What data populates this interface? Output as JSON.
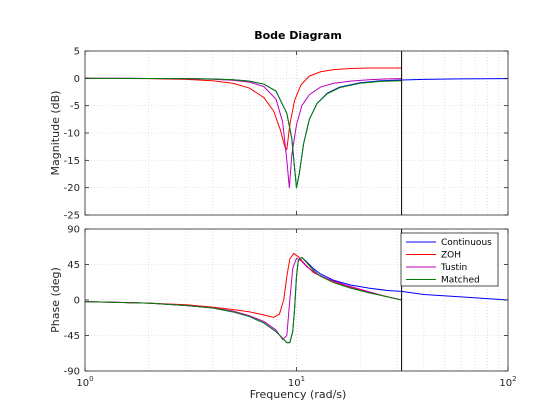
{
  "chart_data": {
    "type": "line",
    "title": "Bode Diagram",
    "xlabel": "Frequency  (rad/s)",
    "xscale": "log",
    "xlim": [
      1,
      100
    ],
    "x_ticks": [
      {
        "value": 1,
        "base": "10",
        "exp": "0"
      },
      {
        "value": 10,
        "base": "10",
        "exp": "1"
      },
      {
        "value": 100,
        "base": "10",
        "exp": "2"
      }
    ],
    "vertical_marker_x": 31.4,
    "grid": true,
    "legend_position": "top-right",
    "panels": [
      {
        "id": "magnitude",
        "ylabel": "Magnitude (dB)",
        "ylim": [
          -25,
          5
        ],
        "y_ticks": [
          5,
          0,
          -5,
          -10,
          -15,
          -20,
          -25
        ],
        "series": [
          {
            "name": "Continuous",
            "color": "#0000ff",
            "x": [
              1,
              2,
              3,
              4,
              5,
              6,
              7,
              8,
              9,
              9.5,
              9.8,
              10,
              10.3,
              10.8,
              11.5,
              12.5,
              14,
              16,
              20,
              25,
              31.4,
              40,
              60,
              100
            ],
            "y": [
              0,
              -0.02,
              -0.06,
              -0.13,
              -0.27,
              -0.52,
              -1.05,
              -2.35,
              -6.4,
              -11,
              -16.5,
              -20,
              -17.5,
              -12,
              -7.5,
              -4.6,
              -2.7,
              -1.6,
              -0.8,
              -0.45,
              -0.3,
              -0.2,
              -0.1,
              -0.05
            ]
          },
          {
            "name": "ZOH",
            "color": "#ff0000",
            "x": [
              1,
              2,
              3,
              4,
              5,
              6,
              7,
              7.8,
              8.4,
              8.8,
              9.0,
              9.3,
              9.8,
              10.5,
              11.5,
              13,
              15,
              18,
              22,
              27,
              31.4
            ],
            "y": [
              0,
              -0.05,
              -0.2,
              -0.45,
              -0.9,
              -1.8,
              -3.5,
              -6,
              -9.5,
              -12.5,
              -13,
              -8.5,
              -4,
              -1.2,
              0.4,
              1.2,
              1.6,
              1.8,
              1.9,
              1.9,
              1.9
            ]
          },
          {
            "name": "Tustin",
            "color": "#bf00bf",
            "x": [
              1,
              2,
              3,
              4,
              5,
              6,
              7,
              8,
              8.6,
              9.0,
              9.25,
              9.5,
              10,
              10.6,
              11.5,
              13,
              15,
              18,
              22,
              27,
              31.4
            ],
            "y": [
              0,
              -0.02,
              -0.07,
              -0.16,
              -0.35,
              -0.7,
              -1.5,
              -3.8,
              -8,
              -15,
              -20,
              -14,
              -8.5,
              -5,
              -3,
              -1.6,
              -0.9,
              -0.5,
              -0.25,
              -0.1,
              -0.05
            ]
          },
          {
            "name": "Matched",
            "color": "#008000",
            "x": [
              1,
              2,
              3,
              4,
              5,
              6,
              7,
              8,
              9,
              9.5,
              9.8,
              10,
              10.3,
              10.8,
              11.5,
              12.5,
              14,
              16,
              20,
              25,
              31.4
            ],
            "y": [
              0,
              -0.02,
              -0.06,
              -0.13,
              -0.27,
              -0.52,
              -1.05,
              -2.35,
              -6.4,
              -11,
              -16.5,
              -20,
              -17.5,
              -12,
              -7.5,
              -4.6,
              -2.8,
              -1.7,
              -0.9,
              -0.55,
              -0.45
            ]
          }
        ]
      },
      {
        "id": "phase",
        "ylabel": "Phase (deg)",
        "ylim": [
          -90,
          90
        ],
        "y_ticks": [
          90,
          45,
          0,
          -45,
          -90
        ],
        "series": [
          {
            "name": "Continuous",
            "color": "#0000ff",
            "x": [
              1,
              2,
              3,
              4,
              5,
              6,
              7,
              8,
              9,
              9.3,
              9.6,
              9.8,
              10,
              10.2,
              10.6,
              11.2,
              12,
              13,
              15,
              18,
              22,
              27,
              31.4,
              40,
              60,
              100
            ],
            "y": [
              -2,
              -4,
              -7,
              -10,
              -15,
              -21,
              -29,
              -40,
              -54,
              -54,
              -40,
              -10,
              30,
              50,
              54,
              48,
              40,
              33,
              25,
              19,
              15,
              12,
              11,
              7,
              4,
              0
            ]
          },
          {
            "name": "ZOH",
            "color": "#ff0000",
            "x": [
              1,
              2,
              3,
              4,
              5,
              6,
              7,
              7.8,
              8.3,
              8.7,
              9.0,
              9.3,
              9.7,
              10.2,
              11,
              12,
              14,
              17,
              21,
              26,
              31.4
            ],
            "y": [
              -2,
              -4,
              -6,
              -9,
              -12,
              -15,
              -19,
              -22,
              -18,
              0,
              30,
              52,
              59,
              55,
              45,
              35,
              26,
              18,
              11,
              5,
              0
            ]
          },
          {
            "name": "Tustin",
            "color": "#bf00bf",
            "x": [
              1,
              2,
              3,
              4,
              5,
              6,
              7,
              8,
              8.6,
              9.0,
              9.3,
              9.6,
              10.0,
              10.5,
              11.2,
              12.5,
              14,
              17,
              21,
              26,
              31.4
            ],
            "y": [
              -2,
              -4,
              -7,
              -10,
              -14,
              -20,
              -27,
              -38,
              -50,
              -45,
              0,
              40,
              53,
              50,
              42,
              33,
              27,
              19,
              12,
              5,
              0
            ]
          },
          {
            "name": "Matched",
            "color": "#008000",
            "x": [
              1,
              2,
              3,
              4,
              5,
              6,
              7,
              8,
              9,
              9.3,
              9.6,
              9.8,
              10,
              10.2,
              10.6,
              11.2,
              12,
              13,
              15,
              18,
              22,
              27,
              31.4
            ],
            "y": [
              -2,
              -4,
              -7,
              -10,
              -15,
              -21,
              -29,
              -40,
              -54,
              -54,
              -40,
              -10,
              30,
              50,
              54,
              47,
              38,
              30,
              22,
              15,
              9,
              4,
              0
            ]
          }
        ]
      }
    ]
  }
}
